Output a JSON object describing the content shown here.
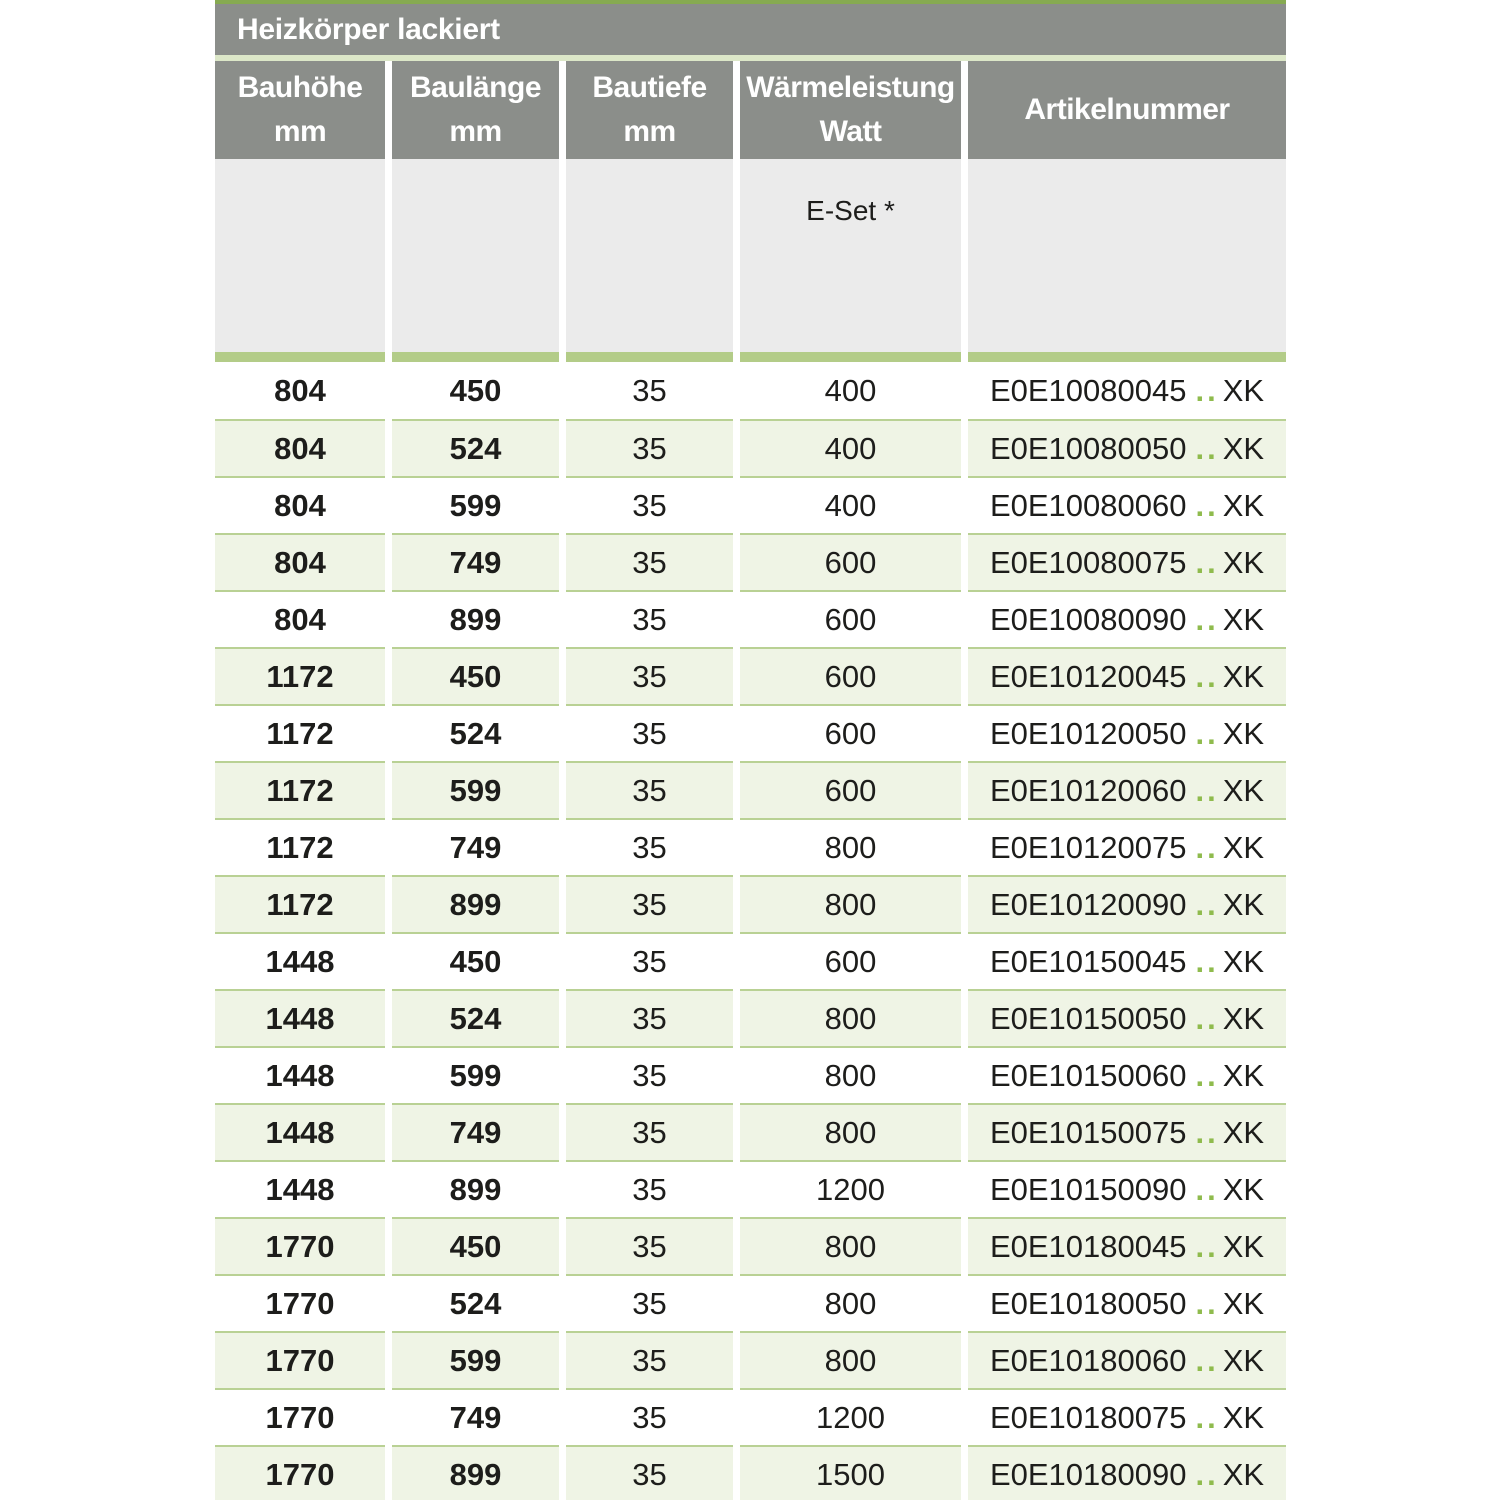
{
  "table": {
    "title": "Heizkörper lackiert",
    "columns": [
      {
        "label": "Bauhöhe",
        "unit": "mm"
      },
      {
        "label": "Baulänge",
        "unit": "mm"
      },
      {
        "label": "Bautiefe",
        "unit": "mm"
      },
      {
        "label": "Wärmeleistung",
        "unit": "Watt"
      },
      {
        "label": "Artikelnummer",
        "unit": ""
      }
    ],
    "subheader": {
      "eset_label": "E-Set *"
    },
    "rows": [
      {
        "bauhoehe": "804",
        "baulaenge": "450",
        "bautiefe": "35",
        "watt": "400",
        "artikel_prefix": "E0E10080045",
        "artikel_dots": "..",
        "artikel_suffix": "XK"
      },
      {
        "bauhoehe": "804",
        "baulaenge": "524",
        "bautiefe": "35",
        "watt": "400",
        "artikel_prefix": "E0E10080050",
        "artikel_dots": "..",
        "artikel_suffix": "XK"
      },
      {
        "bauhoehe": "804",
        "baulaenge": "599",
        "bautiefe": "35",
        "watt": "400",
        "artikel_prefix": "E0E10080060",
        "artikel_dots": "..",
        "artikel_suffix": "XK"
      },
      {
        "bauhoehe": "804",
        "baulaenge": "749",
        "bautiefe": "35",
        "watt": "600",
        "artikel_prefix": "E0E10080075",
        "artikel_dots": "..",
        "artikel_suffix": "XK"
      },
      {
        "bauhoehe": "804",
        "baulaenge": "899",
        "bautiefe": "35",
        "watt": "600",
        "artikel_prefix": "E0E10080090",
        "artikel_dots": "..",
        "artikel_suffix": "XK"
      },
      {
        "bauhoehe": "1172",
        "baulaenge": "450",
        "bautiefe": "35",
        "watt": "600",
        "artikel_prefix": "E0E10120045",
        "artikel_dots": "..",
        "artikel_suffix": "XK"
      },
      {
        "bauhoehe": "1172",
        "baulaenge": "524",
        "bautiefe": "35",
        "watt": "600",
        "artikel_prefix": "E0E10120050",
        "artikel_dots": "..",
        "artikel_suffix": "XK"
      },
      {
        "bauhoehe": "1172",
        "baulaenge": "599",
        "bautiefe": "35",
        "watt": "600",
        "artikel_prefix": "E0E10120060",
        "artikel_dots": "..",
        "artikel_suffix": "XK"
      },
      {
        "bauhoehe": "1172",
        "baulaenge": "749",
        "bautiefe": "35",
        "watt": "800",
        "artikel_prefix": "E0E10120075",
        "artikel_dots": "..",
        "artikel_suffix": "XK"
      },
      {
        "bauhoehe": "1172",
        "baulaenge": "899",
        "bautiefe": "35",
        "watt": "800",
        "artikel_prefix": "E0E10120090",
        "artikel_dots": "..",
        "artikel_suffix": "XK"
      },
      {
        "bauhoehe": "1448",
        "baulaenge": "450",
        "bautiefe": "35",
        "watt": "600",
        "artikel_prefix": "E0E10150045",
        "artikel_dots": "..",
        "artikel_suffix": "XK"
      },
      {
        "bauhoehe": "1448",
        "baulaenge": "524",
        "bautiefe": "35",
        "watt": "800",
        "artikel_prefix": "E0E10150050",
        "artikel_dots": "..",
        "artikel_suffix": "XK"
      },
      {
        "bauhoehe": "1448",
        "baulaenge": "599",
        "bautiefe": "35",
        "watt": "800",
        "artikel_prefix": "E0E10150060",
        "artikel_dots": "..",
        "artikel_suffix": "XK"
      },
      {
        "bauhoehe": "1448",
        "baulaenge": "749",
        "bautiefe": "35",
        "watt": "800",
        "artikel_prefix": "E0E10150075",
        "artikel_dots": "..",
        "artikel_suffix": "XK"
      },
      {
        "bauhoehe": "1448",
        "baulaenge": "899",
        "bautiefe": "35",
        "watt": "1200",
        "artikel_prefix": "E0E10150090",
        "artikel_dots": "..",
        "artikel_suffix": "XK"
      },
      {
        "bauhoehe": "1770",
        "baulaenge": "450",
        "bautiefe": "35",
        "watt": "800",
        "artikel_prefix": "E0E10180045",
        "artikel_dots": "..",
        "artikel_suffix": "XK"
      },
      {
        "bauhoehe": "1770",
        "baulaenge": "524",
        "bautiefe": "35",
        "watt": "800",
        "artikel_prefix": "E0E10180050",
        "artikel_dots": "..",
        "artikel_suffix": "XK"
      },
      {
        "bauhoehe": "1770",
        "baulaenge": "599",
        "bautiefe": "35",
        "watt": "800",
        "artikel_prefix": "E0E10180060",
        "artikel_dots": "..",
        "artikel_suffix": "XK"
      },
      {
        "bauhoehe": "1770",
        "baulaenge": "749",
        "bautiefe": "35",
        "watt": "1200",
        "artikel_prefix": "E0E10180075",
        "artikel_dots": "..",
        "artikel_suffix": "XK"
      },
      {
        "bauhoehe": "1770",
        "baulaenge": "899",
        "bautiefe": "35",
        "watt": "1500",
        "artikel_prefix": "E0E10180090",
        "artikel_dots": "..",
        "artikel_suffix": "XK"
      }
    ],
    "colors": {
      "accent_top_line": "#86aa51",
      "header_gray": "#8b8e8a",
      "header_text": "#ffffff",
      "title_underline": "#dce7c8",
      "subheader_bg": "#ebebeb",
      "divider_green": "#b3cc88",
      "row_green_bg": "#eff4e5",
      "row_separator": "#b9d194",
      "text_dark": "#1d1d1b",
      "artikel_dots_green": "#8fbb4d"
    }
  }
}
